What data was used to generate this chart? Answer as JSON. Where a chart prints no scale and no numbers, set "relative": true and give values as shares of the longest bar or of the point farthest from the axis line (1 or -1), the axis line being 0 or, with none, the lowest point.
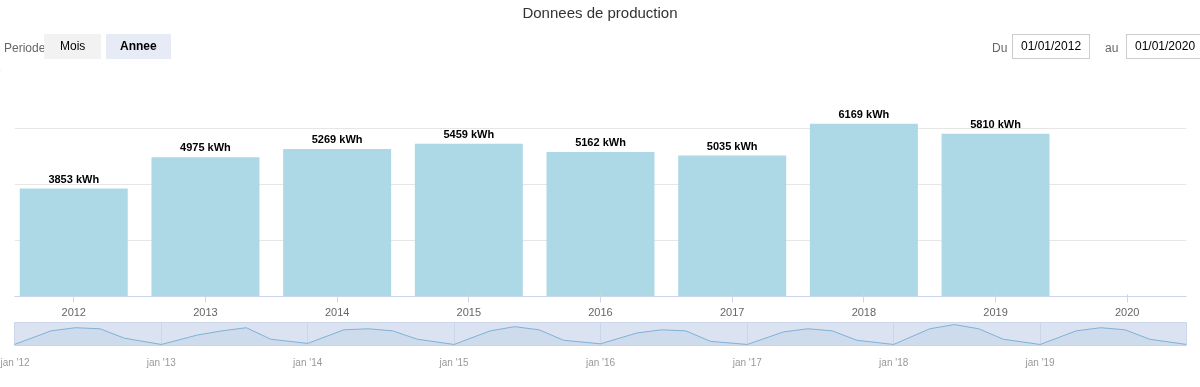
{
  "chart_data": [
    {
      "type": "bar",
      "title": "Donnees de production",
      "annotations": [
        "Periode",
        "Mois",
        "Annee",
        "Du",
        "01/01/2012",
        "au",
        "01/01/2020"
      ],
      "categories": [
        "2012",
        "2013",
        "2014",
        "2015",
        "2016",
        "2017",
        "2018",
        "2019",
        "2020"
      ],
      "values": [
        3853,
        4975,
        5269,
        5459,
        5162,
        5035,
        6169,
        5810,
        null
      ],
      "value_labels": [
        "3853 kWh",
        "4975 kWh",
        "5269 kWh",
        "5459 kWh",
        "5162 kWh",
        "5035 kWh",
        "6169 kWh",
        "5810 kWh",
        null
      ],
      "color": "#add8e6",
      "ylim": [
        0,
        8000
      ],
      "yticks": [
        {
          "value": 0,
          "label": null
        },
        {
          "value": 2000,
          "label": null
        },
        {
          "value": 4000,
          "label": null
        },
        {
          "value": 6000,
          "label": null
        }
      ],
      "grid": "y",
      "tick_labels": "x"
    },
    {
      "type": "area",
      "relative": true,
      "color": "#7fb2d4",
      "tick_labels": "x",
      "grid": "x",
      "x": [
        "2012-01",
        "2012-04",
        "2012-06",
        "2012-08",
        "2012-10",
        "2013-01",
        "2013-04",
        "2013-06",
        "2013-08",
        "2013-10",
        "2014-01",
        "2014-04",
        "2014-06",
        "2014-08",
        "2014-10",
        "2015-01",
        "2015-04",
        "2015-06",
        "2015-08",
        "2015-10",
        "2016-01",
        "2016-04",
        "2016-06",
        "2016-08",
        "2016-10",
        "2017-01",
        "2017-04",
        "2017-06",
        "2017-08",
        "2017-10",
        "2018-01",
        "2018-04",
        "2018-06",
        "2018-08",
        "2018-10",
        "2019-01",
        "2019-04",
        "2019-06",
        "2019-08",
        "2019-10",
        "2020-01"
      ],
      "values": [
        0.05,
        0.7,
        0.85,
        0.8,
        0.35,
        0.05,
        0.5,
        0.7,
        0.85,
        0.3,
        0.1,
        0.75,
        0.8,
        0.7,
        0.3,
        0.05,
        0.7,
        0.9,
        0.75,
        0.25,
        0.08,
        0.6,
        0.75,
        0.7,
        0.2,
        0.05,
        0.65,
        0.8,
        0.7,
        0.25,
        0.05,
        0.8,
        1.0,
        0.8,
        0.3,
        0.05,
        0.7,
        0.85,
        0.75,
        0.3,
        0.05
      ],
      "xlim": [
        "2012-01",
        "2020-01"
      ],
      "xticks": [
        {
          "value": "2012-01",
          "label": "jan '12"
        },
        {
          "value": "2013-01",
          "label": "jan '13"
        },
        {
          "value": "2014-01",
          "label": "jan '14"
        },
        {
          "value": "2015-01",
          "label": "jan '15"
        },
        {
          "value": "2016-01",
          "label": "jan '16"
        },
        {
          "value": "2017-01",
          "label": "jan '17"
        },
        {
          "value": "2018-01",
          "label": "jan '18"
        },
        {
          "value": "2019-01",
          "label": "jan '19"
        }
      ]
    }
  ]
}
